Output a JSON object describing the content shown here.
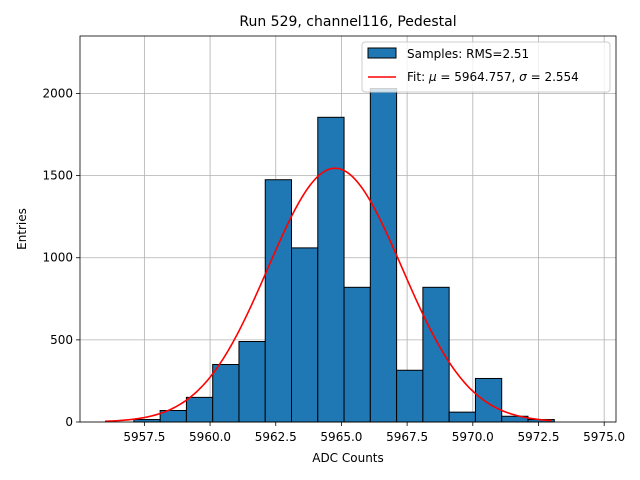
{
  "chart_data": {
    "type": "bar",
    "title": "Run 529, channel116, Pedestal",
    "xlabel": "ADC Counts",
    "ylabel": "Entries",
    "xlim": [
      5955.05,
      5975.45
    ],
    "ylim": [
      0,
      2350
    ],
    "grid": true,
    "legend_position": "top-right",
    "x_ticks": [
      5957.5,
      5960.0,
      5962.5,
      5965.0,
      5967.5,
      5970.0,
      5972.5,
      5975.0
    ],
    "x_tick_labels": [
      "5957.5",
      "5960.0",
      "5962.5",
      "5965.0",
      "5967.5",
      "5970.0",
      "5972.5",
      "5975.0"
    ],
    "y_ticks": [
      0,
      500,
      1000,
      1500,
      2000
    ],
    "y_tick_labels": [
      "0",
      "500",
      "1000",
      "1500",
      "2000"
    ],
    "histogram": {
      "name": "Samples: RMS=2.51",
      "bin_width": 1.0,
      "bin_edges_start": 5957.1,
      "values": [
        15,
        70,
        150,
        350,
        490,
        1475,
        1060,
        1855,
        820,
        2030,
        315,
        820,
        60,
        265,
        35,
        15
      ],
      "color": "#1f77b4",
      "edgecolor": "#000000"
    },
    "fit": {
      "name": "Fit: μ = 5964.757, σ = 2.554",
      "mu": 5964.757,
      "sigma": 2.554,
      "amplitude": 1545,
      "x_range": [
        5956.0,
        5973.0
      ],
      "color": "#ff0000"
    }
  },
  "legend": {
    "hist_label": "Samples: RMS=2.51",
    "fit_label_prefix": "Fit: ",
    "fit_mu_symbol": "μ",
    "fit_mu_text": " = 5964.757, ",
    "fit_sigma_symbol": "σ",
    "fit_sigma_text": " = 2.554"
  }
}
